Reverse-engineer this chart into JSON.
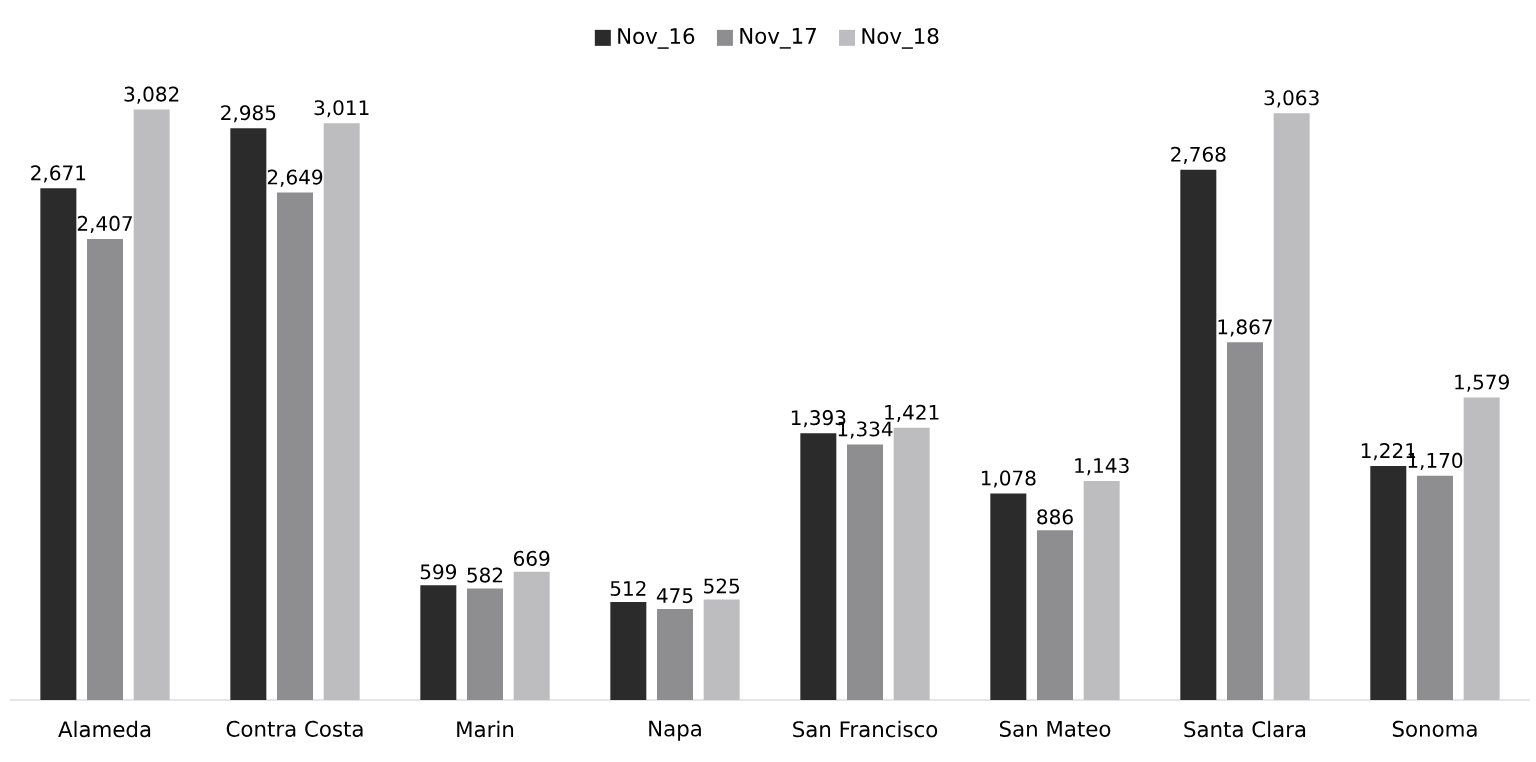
{
  "chart_data": {
    "type": "bar",
    "categories": [
      "Alameda",
      "Contra Costa",
      "Marin",
      "Napa",
      "San Francisco",
      "San Mateo",
      "Santa Clara",
      "Sonoma"
    ],
    "series": [
      {
        "name": "Nov_16",
        "color": "#2b2b2b",
        "values": [
          2671,
          2985,
          599,
          512,
          1393,
          1078,
          2768,
          1221
        ],
        "value_labels": [
          "2,671",
          "2,985",
          "599",
          "512",
          "1,393",
          "1,078",
          "2,768",
          "1,221"
        ]
      },
      {
        "name": "Nov_17",
        "color": "#8e8e90",
        "values": [
          2407,
          2649,
          582,
          475,
          1334,
          886,
          1867,
          1170
        ],
        "value_labels": [
          "2,407",
          "2,649",
          "582",
          "475",
          "1,334",
          "886",
          "1,867",
          "1,170"
        ]
      },
      {
        "name": "Nov_18",
        "color": "#bdbdbf",
        "values": [
          3082,
          3011,
          669,
          525,
          1421,
          1143,
          3063,
          1579
        ],
        "value_labels": [
          "3,082",
          "3,011",
          "669",
          "525",
          "1,421",
          "1,143",
          "3,063",
          "1,579"
        ]
      }
    ],
    "legend": "top"
  }
}
